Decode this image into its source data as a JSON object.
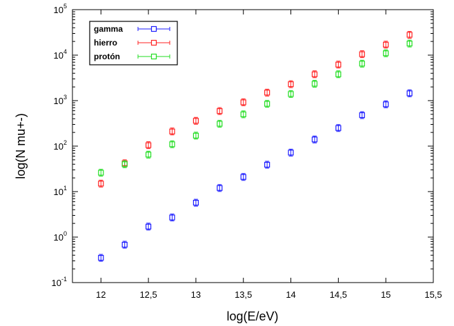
{
  "chart_data": {
    "type": "scatter",
    "xlabel": "log(E/eV)",
    "ylabel": "log(N mu+-)",
    "xlim": [
      11.7,
      15.5
    ],
    "ylim_exponent": [
      -1,
      5
    ],
    "yscale": "log",
    "grid": false,
    "legend_placement": "top-left",
    "x_ticks": [
      {
        "value": 12,
        "label": "12"
      },
      {
        "value": 12.5,
        "label": "12,5"
      },
      {
        "value": 13,
        "label": "13"
      },
      {
        "value": 13.5,
        "label": "13,5"
      },
      {
        "value": 14,
        "label": "14"
      },
      {
        "value": 14.5,
        "label": "14,5"
      },
      {
        "value": 15,
        "label": "15"
      },
      {
        "value": 15.5,
        "label": "15,5"
      }
    ],
    "y_ticks": [
      {
        "exp": -1,
        "base": "10",
        "sup": "-1"
      },
      {
        "exp": 0,
        "base": "10",
        "sup": "0"
      },
      {
        "exp": 1,
        "base": "10",
        "sup": "1"
      },
      {
        "exp": 2,
        "base": "10",
        "sup": "2"
      },
      {
        "exp": 3,
        "base": "10",
        "sup": "3"
      },
      {
        "exp": 4,
        "base": "10",
        "sup": "4"
      },
      {
        "exp": 5,
        "base": "10",
        "sup": "5"
      }
    ],
    "series": [
      {
        "name": "gamma",
        "color": "#1a1aff",
        "x": [
          12,
          12.25,
          12.5,
          12.75,
          13,
          13.25,
          13.5,
          13.75,
          14,
          14.25,
          14.5,
          14.75,
          15,
          15.25
        ],
        "y": [
          0.35,
          0.68,
          1.7,
          2.7,
          5.7,
          12,
          21,
          39,
          72,
          140,
          250,
          480,
          830,
          1450
        ]
      },
      {
        "name": "hierro",
        "color": "#ff2020",
        "x": [
          12,
          12.25,
          12.5,
          12.75,
          13,
          13.25,
          13.5,
          13.75,
          14,
          14.25,
          14.5,
          14.75,
          15,
          15.25
        ],
        "y": [
          15,
          42,
          105,
          210,
          360,
          590,
          920,
          1500,
          2300,
          3800,
          6200,
          10500,
          17000,
          28000
        ]
      },
      {
        "name": "protón",
        "color": "#22dd22",
        "x": [
          12,
          12.25,
          12.5,
          12.75,
          13,
          13.25,
          13.5,
          13.75,
          14,
          14.25,
          14.5,
          14.75,
          15,
          15.25
        ],
        "y": [
          26,
          40,
          65,
          110,
          170,
          310,
          500,
          850,
          1400,
          2350,
          3800,
          6500,
          11000,
          18000
        ]
      }
    ]
  }
}
